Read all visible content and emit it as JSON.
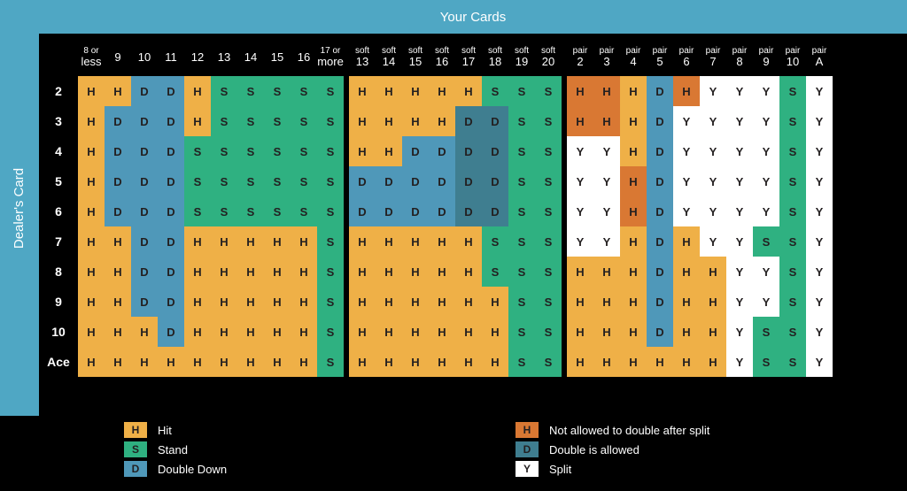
{
  "title_top": "Your Cards",
  "title_left": "Dealer's Card",
  "colors": {
    "teal_bar": "#4fa7c4",
    "hit": "#efb047",
    "stand": "#2fb181",
    "double": "#4f98b9",
    "nodbl_after_split": "#d97833",
    "double_allowed": "#3f7e90",
    "split": "#ffffff",
    "bg": "#000000",
    "text_on_cell": "#231f20"
  },
  "dealer_rows": [
    "2",
    "3",
    "4",
    "5",
    "6",
    "7",
    "8",
    "9",
    "10",
    "Ace"
  ],
  "sections": [
    {
      "id": "hard",
      "headers": [
        {
          "l1": "8 or",
          "l2": "less"
        },
        {
          "l1": "",
          "l2": "9"
        },
        {
          "l1": "",
          "l2": "10"
        },
        {
          "l1": "",
          "l2": "11"
        },
        {
          "l1": "",
          "l2": "12"
        },
        {
          "l1": "",
          "l2": "13"
        },
        {
          "l1": "",
          "l2": "14"
        },
        {
          "l1": "",
          "l2": "15"
        },
        {
          "l1": "",
          "l2": "16"
        },
        {
          "l1": "17 or",
          "l2": "more"
        }
      ]
    },
    {
      "id": "soft",
      "headers": [
        {
          "l1": "soft",
          "l2": "13"
        },
        {
          "l1": "soft",
          "l2": "14"
        },
        {
          "l1": "soft",
          "l2": "15"
        },
        {
          "l1": "soft",
          "l2": "16"
        },
        {
          "l1": "soft",
          "l2": "17"
        },
        {
          "l1": "soft",
          "l2": "18"
        },
        {
          "l1": "soft",
          "l2": "19"
        },
        {
          "l1": "soft",
          "l2": "20"
        }
      ]
    },
    {
      "id": "pair",
      "headers": [
        {
          "l1": "pair",
          "l2": "2"
        },
        {
          "l1": "pair",
          "l2": "3"
        },
        {
          "l1": "pair",
          "l2": "4"
        },
        {
          "l1": "pair",
          "l2": "5"
        },
        {
          "l1": "pair",
          "l2": "6"
        },
        {
          "l1": "pair",
          "l2": "7"
        },
        {
          "l1": "pair",
          "l2": "8"
        },
        {
          "l1": "pair",
          "l2": "9"
        },
        {
          "l1": "pair",
          "l2": "10"
        },
        {
          "l1": "pair",
          "l2": "A"
        }
      ]
    }
  ],
  "grid": {
    "hard": [
      [
        "H",
        "H",
        "D",
        "D",
        "H",
        "S",
        "S",
        "S",
        "S",
        "S"
      ],
      [
        "H",
        "D",
        "D",
        "D",
        "H",
        "S",
        "S",
        "S",
        "S",
        "S"
      ],
      [
        "H",
        "D",
        "D",
        "D",
        "S",
        "S",
        "S",
        "S",
        "S",
        "S"
      ],
      [
        "H",
        "D",
        "D",
        "D",
        "S",
        "S",
        "S",
        "S",
        "S",
        "S"
      ],
      [
        "H",
        "D",
        "D",
        "D",
        "S",
        "S",
        "S",
        "S",
        "S",
        "S"
      ],
      [
        "H",
        "H",
        "D",
        "D",
        "H",
        "H",
        "H",
        "H",
        "H",
        "S"
      ],
      [
        "H",
        "H",
        "D",
        "D",
        "H",
        "H",
        "H",
        "H",
        "H",
        "S"
      ],
      [
        "H",
        "H",
        "D",
        "D",
        "H",
        "H",
        "H",
        "H",
        "H",
        "S"
      ],
      [
        "H",
        "H",
        "H",
        "D",
        "H",
        "H",
        "H",
        "H",
        "H",
        "S"
      ],
      [
        "H",
        "H",
        "H",
        "H",
        "H",
        "H",
        "H",
        "H",
        "H",
        "S"
      ]
    ],
    "soft": [
      [
        "H",
        "H",
        "H",
        "H",
        "H",
        "S",
        "S",
        "S"
      ],
      [
        "H",
        "H",
        "H",
        "H",
        "Da",
        "Da",
        "S",
        "S"
      ],
      [
        "H",
        "H",
        "D",
        "D",
        "Da",
        "Da",
        "S",
        "S"
      ],
      [
        "D",
        "D",
        "D",
        "D",
        "Da",
        "Da",
        "S",
        "S"
      ],
      [
        "D",
        "D",
        "D",
        "D",
        "Da",
        "Da",
        "S",
        "S"
      ],
      [
        "H",
        "H",
        "H",
        "H",
        "H",
        "S",
        "S",
        "S"
      ],
      [
        "H",
        "H",
        "H",
        "H",
        "H",
        "S",
        "S",
        "S"
      ],
      [
        "H",
        "H",
        "H",
        "H",
        "H",
        "H",
        "S",
        "S"
      ],
      [
        "H",
        "H",
        "H",
        "H",
        "H",
        "H",
        "S",
        "S"
      ],
      [
        "H",
        "H",
        "H",
        "H",
        "H",
        "H",
        "S",
        "S"
      ]
    ],
    "pair": [
      [
        "Hn",
        "Hn",
        "H",
        "D",
        "Hn",
        "Y",
        "Y",
        "Y",
        "S",
        "Y"
      ],
      [
        "Hn",
        "Hn",
        "H",
        "D",
        "Y",
        "Y",
        "Y",
        "Y",
        "S",
        "Y"
      ],
      [
        "Y",
        "Y",
        "H",
        "D",
        "Y",
        "Y",
        "Y",
        "Y",
        "S",
        "Y"
      ],
      [
        "Y",
        "Y",
        "Hn",
        "D",
        "Y",
        "Y",
        "Y",
        "Y",
        "S",
        "Y"
      ],
      [
        "Y",
        "Y",
        "Hn",
        "D",
        "Y",
        "Y",
        "Y",
        "Y",
        "S",
        "Y"
      ],
      [
        "Y",
        "Y",
        "H",
        "D",
        "H",
        "Y",
        "Y",
        "S",
        "S",
        "Y"
      ],
      [
        "H",
        "H",
        "H",
        "D",
        "H",
        "H",
        "Y",
        "Y",
        "S",
        "Y"
      ],
      [
        "H",
        "H",
        "H",
        "D",
        "H",
        "H",
        "Y",
        "Y",
        "S",
        "Y"
      ],
      [
        "H",
        "H",
        "H",
        "D",
        "H",
        "H",
        "Y",
        "S",
        "S",
        "Y"
      ],
      [
        "H",
        "H",
        "H",
        "H",
        "H",
        "H",
        "Y",
        "S",
        "S",
        "Y"
      ]
    ]
  },
  "action_map": {
    "H": {
      "label": "H",
      "color": "hit"
    },
    "S": {
      "label": "S",
      "color": "stand"
    },
    "D": {
      "label": "D",
      "color": "double"
    },
    "Hn": {
      "label": "H",
      "color": "nodbl_after_split"
    },
    "Da": {
      "label": "D",
      "color": "double_allowed"
    },
    "Y": {
      "label": "Y",
      "color": "split"
    }
  },
  "legend": {
    "left": [
      {
        "code": "H",
        "text": "Hit"
      },
      {
        "code": "S",
        "text": "Stand"
      },
      {
        "code": "D",
        "text": "Double Down"
      }
    ],
    "right": [
      {
        "code": "Hn",
        "text": "Not allowed to double after split"
      },
      {
        "code": "Da",
        "text": "Double is allowed"
      },
      {
        "code": "Y",
        "text": "Split"
      }
    ]
  }
}
